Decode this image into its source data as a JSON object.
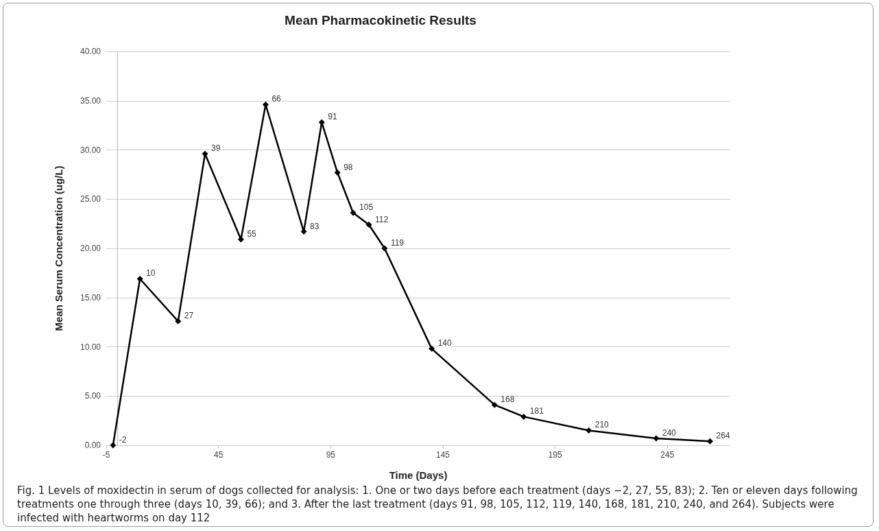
{
  "chart_data": {
    "type": "line",
    "title": "Mean Pharmacokinetic Results",
    "xlabel": "Time (Days)",
    "ylabel": "Mean Serum Concentration (ug/L)",
    "x": [
      -2,
      10,
      27,
      39,
      55,
      66,
      83,
      91,
      98,
      105,
      112,
      119,
      140,
      168,
      181,
      210,
      240,
      264
    ],
    "series": [
      {
        "color": "#000000",
        "values": [
          0,
          16.9,
          12.6,
          29.6,
          20.9,
          34.6,
          21.7,
          32.8,
          27.7,
          23.6,
          22.4,
          20.0,
          9.8,
          4.1,
          2.9,
          1.5,
          0.7,
          0.4
        ]
      }
    ],
    "xlim": [
      -5,
      273
    ],
    "xticks": [
      -5,
      45,
      95,
      145,
      195,
      245
    ],
    "ylim": [
      0,
      40
    ],
    "yticks": [
      {
        "value": 0,
        "label": "0.00"
      },
      {
        "value": 5,
        "label": "5.00"
      },
      {
        "value": 10,
        "label": "10.00"
      },
      {
        "value": 15,
        "label": "15.00"
      },
      {
        "value": 20,
        "label": "20.00"
      },
      {
        "value": 25,
        "label": "25.00"
      },
      {
        "value": 30,
        "label": "30.00"
      },
      {
        "value": 35,
        "label": "35.00"
      },
      {
        "value": 40,
        "label": "40.00"
      }
    ],
    "grid": "y",
    "marker": "diamond",
    "line_style": "solid",
    "annotations": [
      {
        "text": "-2",
        "x": -2,
        "y": 0
      },
      {
        "text": "10",
        "x": 10,
        "y": 16.9
      },
      {
        "text": "27",
        "x": 27,
        "y": 12.6
      },
      {
        "text": "39",
        "x": 39,
        "y": 29.6
      },
      {
        "text": "55",
        "x": 55,
        "y": 20.9
      },
      {
        "text": "66",
        "x": 66,
        "y": 34.6
      },
      {
        "text": "83",
        "x": 83,
        "y": 21.7
      },
      {
        "text": "91",
        "x": 91,
        "y": 32.8
      },
      {
        "text": "98",
        "x": 98,
        "y": 27.7
      },
      {
        "text": "105",
        "x": 105,
        "y": 23.6
      },
      {
        "text": "112",
        "x": 112,
        "y": 22.4
      },
      {
        "text": "119",
        "x": 119,
        "y": 20.0
      },
      {
        "text": "140",
        "x": 140,
        "y": 9.8
      },
      {
        "text": "168",
        "x": 168,
        "y": 4.1
      },
      {
        "text": "181",
        "x": 181,
        "y": 2.9
      },
      {
        "text": "210",
        "x": 210,
        "y": 1.5
      },
      {
        "text": "240",
        "x": 240,
        "y": 0.7
      },
      {
        "text": "264",
        "x": 264,
        "y": 0.4
      },
      "Fig. 1 Levels of moxidectin in serum of dogs collected for analysis: 1. One or two days before each treatment (days −2, 27, 55, 83); 2. Ten or eleven days following treatments one through three (days 10, 39, 66); and 3. After the last treatment (days 91, 98, 105, 112, 119, 140, 168, 181, 210, 240, and 264). Subjects were infected with heartworms on day 112"
    ]
  }
}
